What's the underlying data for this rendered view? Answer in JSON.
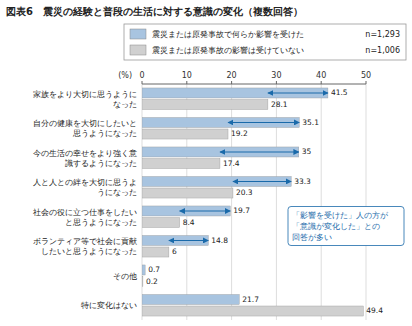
{
  "chart_data": {
    "type": "bar",
    "orientation": "horizontal",
    "title": "図表6　震災の経験と普段の生活に対する意識の変化（複数回答）",
    "xlabel": "(%)",
    "categories": [
      "家族をより大切に思うように\nなった",
      "自分の健康を大切にしたいと\n思うようになった",
      "今の生活の幸せをより強く意\n識するようになった",
      "人と人との絆を大切に思うよ\nうになった",
      "社会の役に立つ仕事をしたい\nと思うようになった",
      "ボランティア等で社会に貢献\nしたいと思うようになった",
      "その他",
      "特に変化はない"
    ],
    "series": [
      {
        "name": "震災または原発事故で何らか影響を受けた",
        "note": "n=1,293",
        "color": "#a8c4e0",
        "values": [
          41.5,
          35.1,
          35.0,
          33.3,
          19.7,
          14.8,
          0.7,
          21.7
        ]
      },
      {
        "name": "震災または原発事故の影響は受けていない",
        "note": "n=1,006",
        "color": "#d0d0d0",
        "values": [
          28.1,
          19.2,
          17.4,
          20.3,
          8.4,
          6.0,
          0.2,
          49.4
        ]
      }
    ],
    "arrows": [
      true,
      true,
      true,
      true,
      true,
      true,
      false,
      false
    ],
    "arrow_color": "#1a6aaa",
    "annotations": [
      {
        "text": "「影響を受けた」人の方が\n「意識が変化した」との\n回答が多い",
        "color": "#1a6aaa"
      }
    ],
    "xlim": [
      0,
      50
    ],
    "xticks": [
      0,
      10,
      20,
      30,
      40,
      50
    ],
    "grid": true,
    "legend": "top",
    "data_labels": true
  }
}
